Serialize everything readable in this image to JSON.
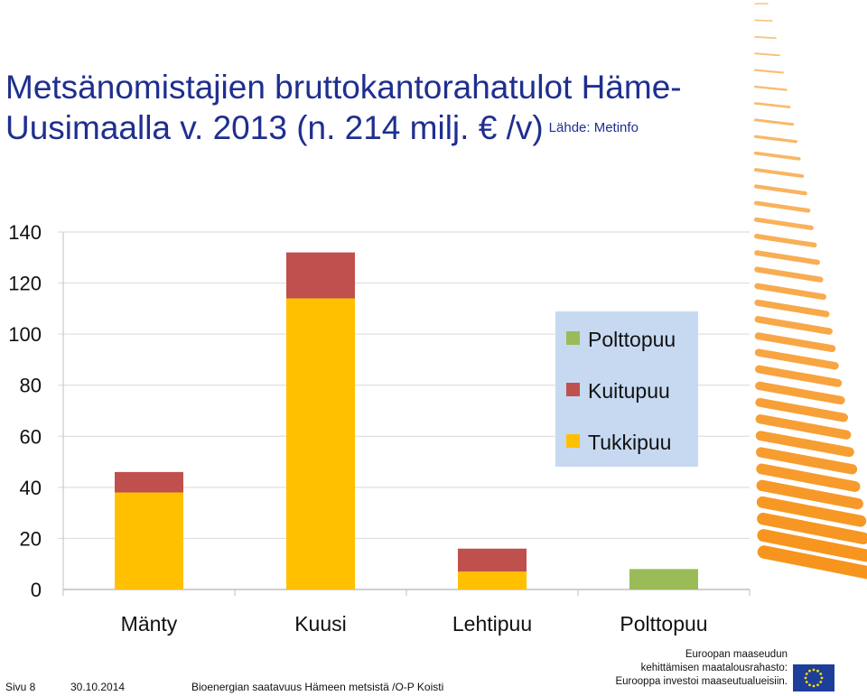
{
  "slide": {
    "title_line1": "Metsänomistajien bruttokantorahatulot Häme-",
    "title_line2": "Uusimaalla v. 2013  (n. 214 milj. € /v)",
    "source": "Lähde: Metinfo"
  },
  "chart_data": {
    "type": "bar",
    "stacked": true,
    "categories": [
      "Mänty",
      "Kuusi",
      "Lehtipuu",
      "Polttopuu"
    ],
    "series": [
      {
        "name": "Tukkipuu",
        "color": "#ffc000",
        "values": [
          38,
          114,
          7,
          0
        ]
      },
      {
        "name": "Kuitupuu",
        "color": "#c0504d",
        "values": [
          8,
          18,
          9,
          0
        ]
      },
      {
        "name": "Polttopuu",
        "color": "#9bbb59",
        "values": [
          0,
          0,
          0,
          8
        ]
      }
    ],
    "legend_order": [
      "Polttopuu",
      "Kuitupuu",
      "Tukkipuu"
    ],
    "ylim": [
      0,
      140
    ],
    "yticks": [
      0,
      20,
      40,
      60,
      80,
      100,
      120,
      140
    ],
    "grid": true,
    "legend_position": "right",
    "legend_background": "#c6d9f1"
  },
  "footer": {
    "page": "Sivu 8",
    "date": "30.10.2014",
    "text": "Bioenergian saatavuus Hämeen metsistä /O-P Koisti",
    "eu_line1": "Euroopan maaseudun",
    "eu_line2": "kehittämisen maatalousrahasto:",
    "eu_line3": "Eurooppa investoi maaseutualueisiin."
  },
  "decor": {
    "accent": "#f7941d",
    "eu_flag": "#1d3f9a",
    "eu_stars": "#ffdd00",
    "title_color": "#1f2f8f"
  }
}
